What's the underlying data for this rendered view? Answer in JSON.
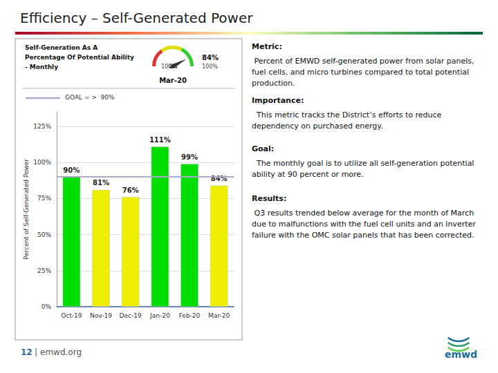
{
  "chart_data": {
    "type": "bar",
    "title": "Efficiency – Self-Generated Power",
    "subtitle": [
      "Self-Generation As A",
      "Percentage Of Potential Ability",
      "- Monthly"
    ],
    "categories": [
      "Oct-19",
      "Nov-19",
      "Dec-19",
      "Jan-20",
      "Feb-20",
      "Mar-20"
    ],
    "values": [
      90,
      81,
      76,
      111,
      99,
      84
    ],
    "value_labels": [
      "90%",
      "81%",
      "76%",
      "111%",
      "99%",
      "84%"
    ],
    "data_labels": true,
    "colors": [
      "#00dd00",
      "#eeee00",
      "#eeee00",
      "#00dd00",
      "#00dd00",
      "#eeee00"
    ],
    "ylabel": "Percent of Self-Generated Power",
    "ylim": [
      0,
      135
    ],
    "yticks": [
      {
        "value": 0,
        "label": "0%"
      },
      {
        "value": 25,
        "label": "25%"
      },
      {
        "value": 50,
        "label": "50%"
      },
      {
        "value": 75,
        "label": "75%"
      },
      {
        "value": 100,
        "label": "100%"
      },
      {
        "value": 125,
        "label": "125%"
      }
    ],
    "grid": true,
    "goal": {
      "value": 90,
      "label": "GOAL = >  90%",
      "color": "#aaaacc"
    },
    "gauge": {
      "type": "gauge",
      "title": "Mar-20",
      "value": 84,
      "value_label": "84%",
      "range": [
        0,
        100
      ],
      "ticks": [
        {
          "value": 0,
          "label": "0%"
        },
        {
          "value": 100,
          "label": "100%"
        }
      ],
      "max_label": "100%",
      "bands": [
        {
          "to": 30,
          "color": "#dd3333"
        },
        {
          "to": 65,
          "color": "#dddd00"
        },
        {
          "to": 100,
          "color": "#33cc33"
        }
      ]
    },
    "annotations": [
      {
        "label": "Metric:",
        "text": " Percent of EMWD self-generated power from solar panels, fuel cells, and micro turbines compared to total potential production."
      },
      {
        "label": "Importance:",
        "text": "  This metric tracks the District’s efforts to reduce dependency on purchased energy."
      },
      {
        "label": "Goal:",
        "text": "  The monthly goal is to utilize all self-generation potential ability at 90 percent or more."
      },
      {
        "label": "Results:",
        "text": " Q3 results trended below average for the month of March due to malfunctions with the fuel cell units and an inverter failure with the OMC solar panels that has been corrected."
      }
    ],
    "footer": {
      "number": "12",
      "separator": "|",
      "text": "emwd.org",
      "logo": "emwd"
    }
  }
}
